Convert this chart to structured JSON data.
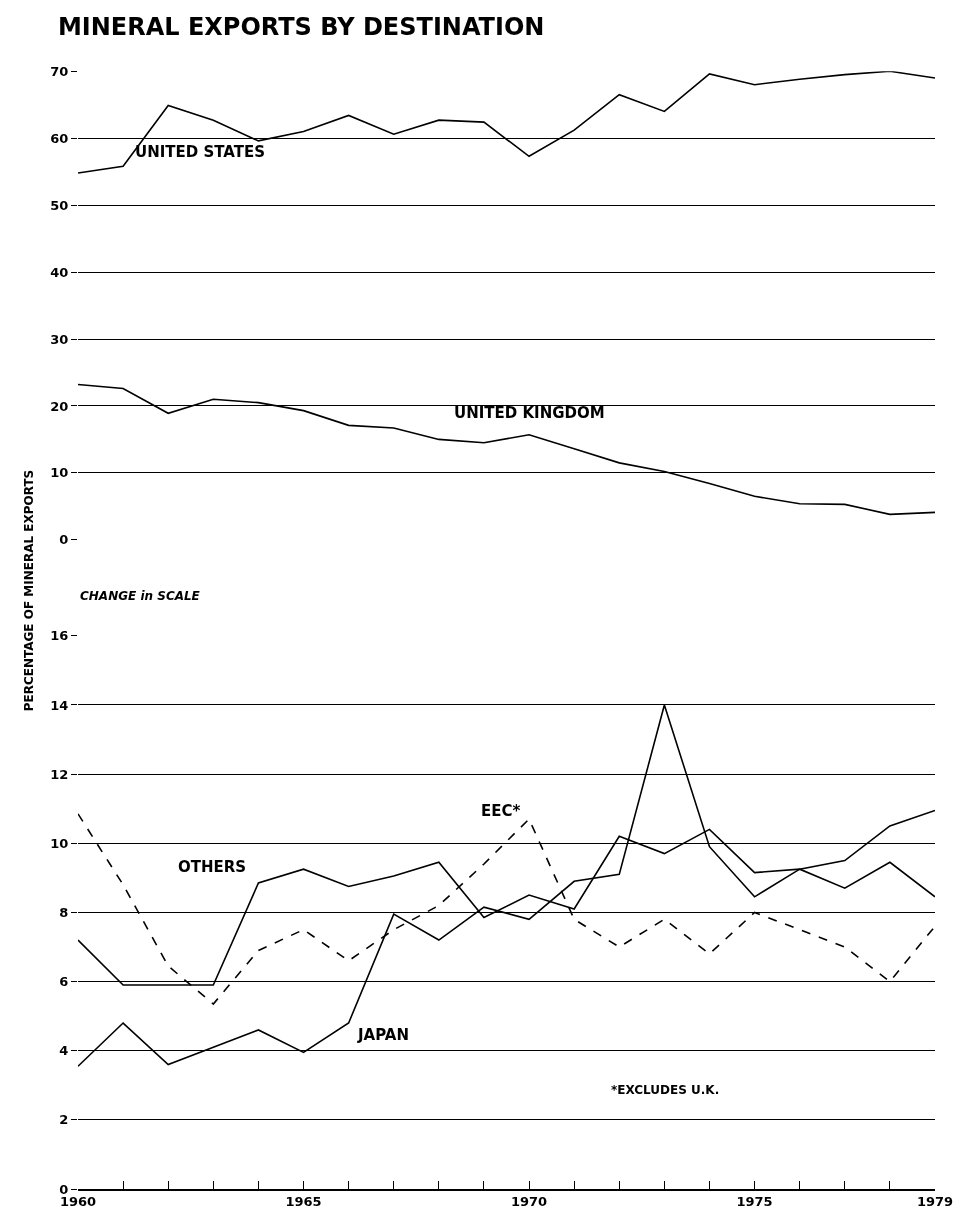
{
  "chart_data": [
    {
      "type": "line",
      "title": "MINERAL EXPORTS BY DESTINATION",
      "xlim": [
        1960,
        1979
      ],
      "ylim": [
        0,
        70
      ],
      "yticks": [
        0,
        10,
        20,
        30,
        40,
        50,
        60,
        70
      ],
      "grid": "y",
      "legend": false,
      "tick_labels": "y",
      "line_style": "solid",
      "x": [
        1960,
        1961,
        1962,
        1963,
        1964,
        1965,
        1966,
        1967,
        1968,
        1969,
        1970,
        1971,
        1972,
        1973,
        1974,
        1975,
        1976,
        1977,
        1978,
        1979
      ],
      "series": [
        {
          "name": "UNITED STATES",
          "color": "#000000",
          "values": [
            54.8,
            55.8,
            64.9,
            62.7,
            59.6,
            61.0,
            63.4,
            60.6,
            62.7,
            62.4,
            57.3,
            61.2,
            66.5,
            64.0,
            69.6,
            68.0,
            68.8,
            69.5,
            70.0,
            69.0
          ]
        },
        {
          "name": "UNITED KINGDOM",
          "color": "#000000",
          "values": [
            23.2,
            22.6,
            18.9,
            21.0,
            20.5,
            19.3,
            17.1,
            16.7,
            15.0,
            14.5,
            15.7,
            13.6,
            11.5,
            10.2,
            8.4,
            6.5,
            5.4,
            5.3,
            3.8,
            4.1
          ]
        }
      ]
    },
    {
      "type": "line",
      "ylabel": "PERCENTAGE OF MINERAL EXPORTS",
      "xlim": [
        1960,
        1979
      ],
      "xticks": [
        1960,
        {
          "value": 1961,
          "label": null
        },
        {
          "value": 1962,
          "label": null
        },
        {
          "value": 1963,
          "label": null
        },
        {
          "value": 1964,
          "label": null
        },
        1965,
        {
          "value": 1966,
          "label": null
        },
        {
          "value": 1967,
          "label": null
        },
        {
          "value": 1968,
          "label": null
        },
        {
          "value": 1969,
          "label": null
        },
        1970,
        {
          "value": 1971,
          "label": null
        },
        {
          "value": 1972,
          "label": null
        },
        {
          "value": 1973,
          "label": null
        },
        {
          "value": 1974,
          "label": null
        },
        1975,
        {
          "value": 1976,
          "label": null
        },
        {
          "value": 1977,
          "label": null
        },
        {
          "value": 1978,
          "label": null
        },
        1979
      ],
      "ylim": [
        0,
        16
      ],
      "yticks": [
        0,
        2,
        4,
        6,
        8,
        10,
        12,
        14,
        16
      ],
      "grid": "y",
      "legend": false,
      "line_style": "solid",
      "x": [
        1960,
        1961,
        1962,
        1963,
        1964,
        1965,
        1966,
        1967,
        1968,
        1969,
        1970,
        1971,
        1972,
        1973,
        1974,
        1975,
        1976,
        1977,
        1978,
        1979
      ],
      "series": [
        {
          "name": "OTHERS",
          "color": "#000000",
          "values": [
            7.2,
            5.9,
            5.9,
            5.9,
            8.85,
            9.25,
            8.75,
            9.05,
            9.45,
            7.85,
            8.5,
            8.1,
            10.2,
            9.7,
            10.4,
            9.15,
            9.25,
            8.7,
            9.45,
            8.45
          ]
        },
        {
          "name": "EEC*",
          "color": "#000000",
          "line_style": "dashed",
          "values": [
            10.85,
            8.8,
            6.45,
            5.35,
            6.9,
            7.5,
            6.6,
            7.5,
            8.2,
            9.4,
            10.7,
            7.8,
            7.0,
            7.8,
            6.8,
            8.0,
            7.5,
            7.0,
            6.0,
            7.6
          ]
        },
        {
          "name": "JAPAN",
          "color": "#000000",
          "values": [
            3.55,
            4.8,
            3.6,
            4.1,
            4.6,
            3.95,
            4.8,
            7.95,
            7.2,
            8.15,
            7.8,
            8.9,
            9.1,
            14.0,
            9.9,
            8.45,
            9.25,
            9.5,
            10.5,
            10.95
          ]
        }
      ],
      "annotations": [
        "CHANGE in SCALE",
        "*EXCLUDES U.K."
      ]
    }
  ]
}
